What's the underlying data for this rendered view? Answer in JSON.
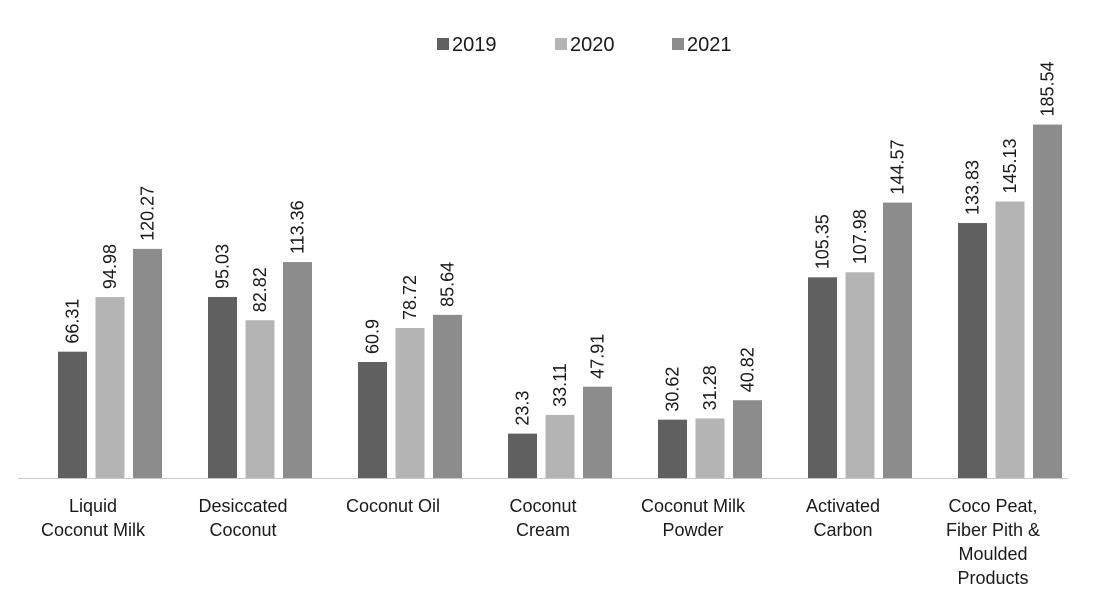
{
  "chart_data": {
    "type": "bar",
    "title": "",
    "xlabel": "",
    "ylabel": "",
    "legend_position": "top",
    "grid": false,
    "ylim": [
      0,
      200
    ],
    "categories": [
      [
        "Liquid",
        "Coconut Milk"
      ],
      [
        "Desiccated",
        "Coconut"
      ],
      [
        "Coconut Oil"
      ],
      [
        "Coconut",
        "Cream"
      ],
      [
        "Coconut Milk",
        "Powder"
      ],
      [
        "Activated",
        "Carbon"
      ],
      [
        "Coco Peat,",
        "Fiber Pith &",
        "Moulded",
        "Products"
      ]
    ],
    "series": [
      {
        "name": "2019",
        "color": "#606060",
        "values": [
          66.31,
          95.03,
          60.9,
          23.3,
          30.62,
          105.35,
          133.83
        ],
        "labels": [
          "66.31",
          "95.03",
          "60.9",
          "23.3",
          "30.62",
          "105.35",
          "133.83"
        ]
      },
      {
        "name": "2020",
        "color": "#b4b4b4",
        "values": [
          94.98,
          82.82,
          78.72,
          33.11,
          31.28,
          107.98,
          145.13
        ],
        "labels": [
          "94.98",
          "82.82",
          "78.72",
          "33.11",
          "31.28",
          "107.98",
          "145.13"
        ]
      },
      {
        "name": "2021",
        "color": "#8c8c8c",
        "values": [
          120.27,
          113.36,
          85.64,
          47.91,
          40.82,
          144.57,
          185.54
        ],
        "labels": [
          "120.27",
          "113.36",
          "85.64",
          "47.91",
          "40.82",
          "144.57",
          "185.54"
        ]
      }
    ]
  }
}
